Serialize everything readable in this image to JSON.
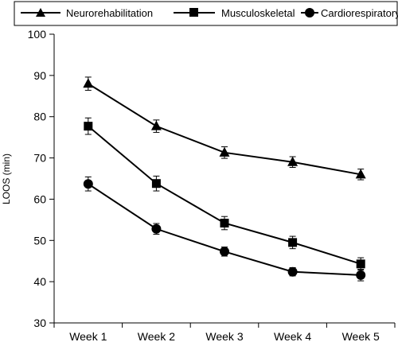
{
  "chart_data": {
    "type": "line",
    "title": "",
    "xlabel": "",
    "ylabel": "LOOS (min)",
    "categories": [
      "Week 1",
      "Week 2",
      "Week 3",
      "Week 4",
      "Week 5"
    ],
    "ylim": [
      30,
      100
    ],
    "yticks": [
      30,
      40,
      50,
      60,
      70,
      80,
      90,
      100
    ],
    "grid": false,
    "legend_position": "top",
    "series": [
      {
        "name": "Neurorehabilitation",
        "marker": "triangle",
        "color": "#000000",
        "values": [
          88.0,
          77.7,
          71.3,
          69.0,
          66.0
        ],
        "errors": [
          1.6,
          1.5,
          1.4,
          1.3,
          1.3
        ]
      },
      {
        "name": "Musculoskeletal",
        "marker": "square",
        "color": "#000000",
        "values": [
          77.7,
          63.8,
          54.2,
          49.5,
          44.3
        ],
        "errors": [
          2.0,
          1.8,
          1.6,
          1.5,
          1.5
        ]
      },
      {
        "name": "Cardiorespiratory",
        "marker": "circle",
        "color": "#000000",
        "values": [
          63.7,
          52.8,
          47.3,
          42.4,
          41.6
        ],
        "errors": [
          1.7,
          1.3,
          1.1,
          1.0,
          1.4
        ]
      }
    ]
  }
}
